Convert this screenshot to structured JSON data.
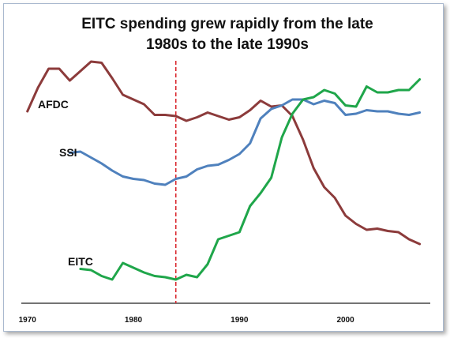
{
  "chart_data": {
    "type": "line",
    "title": [
      "EITC spending grew rapidly from the late",
      "1980s to the late 1990s"
    ],
    "xlabel": "",
    "ylabel": "",
    "xlim": [
      1969.5,
      2008
    ],
    "ylim": [
      0,
      100
    ],
    "xticks": [
      1970,
      1980,
      1990,
      2000
    ],
    "grid": false,
    "legend": "none",
    "reference_line": {
      "x": 1984,
      "style": "dashed",
      "color": "#d9262d"
    },
    "series": [
      {
        "name": "AFDC",
        "color": "#8c3b3b",
        "points": [
          [
            1970,
            77
          ],
          [
            1971,
            87
          ],
          [
            1972,
            95
          ],
          [
            1973,
            95
          ],
          [
            1974,
            90
          ],
          [
            1975,
            94
          ],
          [
            1976,
            98
          ],
          [
            1977,
            97.5
          ],
          [
            1978,
            91
          ],
          [
            1979,
            84
          ],
          [
            1980,
            82
          ],
          [
            1981,
            80
          ],
          [
            1982,
            75.5
          ],
          [
            1983,
            75.5
          ],
          [
            1984,
            75
          ],
          [
            1985,
            73
          ],
          [
            1986,
            74.5
          ],
          [
            1987,
            76.5
          ],
          [
            1988,
            75
          ],
          [
            1989,
            73.5
          ],
          [
            1990,
            74.5
          ],
          [
            1991,
            77.5
          ],
          [
            1992,
            81.5
          ],
          [
            1993,
            79
          ],
          [
            1994,
            79.5
          ],
          [
            1995,
            75
          ],
          [
            1996,
            65
          ],
          [
            1997,
            53
          ],
          [
            1998,
            45
          ],
          [
            1999,
            40.5
          ],
          [
            2000,
            33
          ],
          [
            2001,
            29.5
          ],
          [
            2002,
            27
          ],
          [
            2003,
            27.5
          ],
          [
            2004,
            26.5
          ],
          [
            2005,
            26
          ],
          [
            2006,
            23
          ],
          [
            2007,
            21
          ]
        ]
      },
      {
        "name": "SSI",
        "color": "#4f81bd",
        "points": [
          [
            1974,
            59.5
          ],
          [
            1975,
            60
          ],
          [
            1976,
            57.5
          ],
          [
            1977,
            55
          ],
          [
            1978,
            52
          ],
          [
            1979,
            49.5
          ],
          [
            1980,
            48.5
          ],
          [
            1981,
            48
          ],
          [
            1982,
            46.5
          ],
          [
            1983,
            46
          ],
          [
            1984,
            48.5
          ],
          [
            1985,
            49.5
          ],
          [
            1986,
            52.5
          ],
          [
            1987,
            54
          ],
          [
            1988,
            54.5
          ],
          [
            1989,
            56.5
          ],
          [
            1990,
            59
          ],
          [
            1991,
            63.5
          ],
          [
            1992,
            74
          ],
          [
            1993,
            78
          ],
          [
            1994,
            79.5
          ],
          [
            1995,
            82
          ],
          [
            1996,
            82
          ],
          [
            1997,
            80
          ],
          [
            1998,
            81.5
          ],
          [
            1999,
            80.5
          ],
          [
            2000,
            75.5
          ],
          [
            2001,
            76
          ],
          [
            2002,
            77.5
          ],
          [
            2003,
            77
          ],
          [
            2004,
            77
          ],
          [
            2005,
            76
          ],
          [
            2006,
            75.5
          ],
          [
            2007,
            76.5
          ]
        ]
      },
      {
        "name": "EITC",
        "color": "#1fa64a",
        "points": [
          [
            1975,
            10.5
          ],
          [
            1976,
            10
          ],
          [
            1977,
            7.5
          ],
          [
            1978,
            6
          ],
          [
            1979,
            13
          ],
          [
            1980,
            11
          ],
          [
            1981,
            9
          ],
          [
            1982,
            7.5
          ],
          [
            1983,
            7
          ],
          [
            1984,
            6
          ],
          [
            1985,
            8
          ],
          [
            1986,
            7
          ],
          [
            1987,
            12.5
          ],
          [
            1988,
            23
          ],
          [
            1989,
            24.5
          ],
          [
            1990,
            26
          ],
          [
            1991,
            37
          ],
          [
            1992,
            42.5
          ],
          [
            1993,
            49
          ],
          [
            1994,
            66
          ],
          [
            1995,
            76
          ],
          [
            1996,
            82
          ],
          [
            1997,
            83
          ],
          [
            1998,
            86
          ],
          [
            1999,
            84.5
          ],
          [
            2000,
            79.5
          ],
          [
            2001,
            79
          ],
          [
            2002,
            87.5
          ],
          [
            2003,
            85
          ],
          [
            2004,
            85
          ],
          [
            2005,
            86
          ],
          [
            2006,
            86
          ],
          [
            2007,
            90.5
          ]
        ]
      }
    ]
  }
}
